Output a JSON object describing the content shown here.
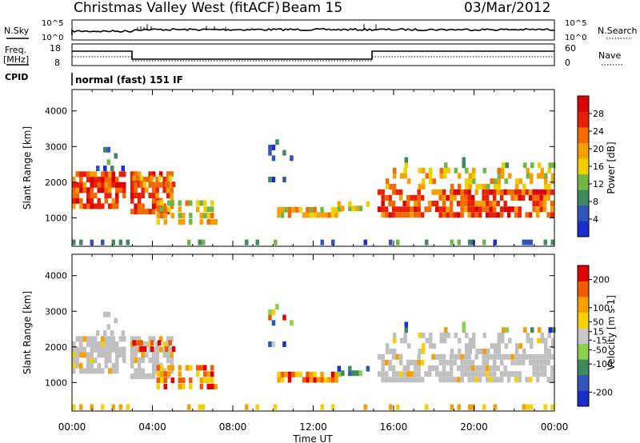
{
  "header": {
    "station": "Christmas Valley West (fitACF)",
    "beam": "Beam 15",
    "date": "03/Mar/2012"
  },
  "strips": {
    "nsky_label": "N.Sky",
    "nsearch_label": "N.Search",
    "noise_ticks": [
      "10^5",
      "10^0"
    ],
    "freq_label_1": "Freq.",
    "freq_label_2": "[MHz]",
    "freq_ticks": [
      "18",
      "8"
    ],
    "nave_label": "Nave",
    "nave_ticks": [
      "60",
      "0"
    ],
    "cpid_label": "CPID",
    "cpid_value": "normal (fast) 151 IF"
  },
  "colors": {
    "power_scale": [
      "#1a2ecc",
      "#2f56b8",
      "#3f8a5f",
      "#74b646",
      "#f0d000",
      "#f7a000",
      "#f26a00",
      "#e82000",
      "#dd0000"
    ],
    "velocity_scale": [
      "#1a2ecc",
      "#2f56b8",
      "#3f8a5f",
      "#8dd050",
      "#c8c8c8",
      "#f6d000",
      "#f5a000",
      "#f25a00",
      "#e00000"
    ],
    "ground_scatter": "#c0c0c0"
  },
  "chart_data": [
    {
      "type": "heatmap",
      "quantity": "Power",
      "ylabel": "Slant Range [km]",
      "xlabel": "Time UT",
      "x_ticks": [
        "00:00",
        "04:00",
        "08:00",
        "12:00",
        "16:00",
        "20:00",
        "00:00"
      ],
      "y_ticks": [
        1000,
        2000,
        3000,
        4000
      ],
      "ylim": [
        200,
        4600
      ],
      "xlim_hours": [
        0,
        24
      ],
      "colorbar": {
        "label": "Power [dB]",
        "ticks": [
          4,
          8,
          12,
          16,
          20,
          24,
          28
        ],
        "range": [
          0,
          32
        ]
      }
    },
    {
      "type": "heatmap",
      "quantity": "Velocity",
      "ylabel": "Slant Range [km]",
      "xlabel": "Time UT",
      "x_ticks": [
        "00:00",
        "04:00",
        "08:00",
        "12:00",
        "16:00",
        "20:00",
        "00:00"
      ],
      "y_ticks": [
        1000,
        2000,
        3000,
        4000
      ],
      "ylim": [
        200,
        4600
      ],
      "xlim_hours": [
        0,
        24
      ],
      "colorbar": {
        "label": "Velocity [m s-1]",
        "ticks": [
          200,
          100,
          50,
          15,
          -15,
          -50,
          -100,
          -200
        ],
        "range": [
          -250,
          250
        ]
      }
    }
  ]
}
